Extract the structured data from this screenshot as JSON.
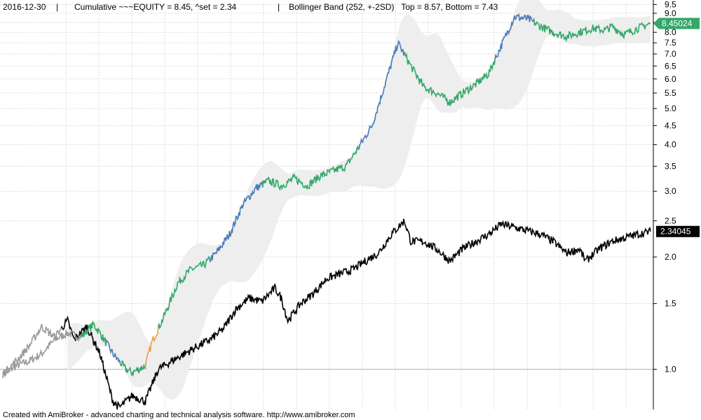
{
  "header": {
    "date": "2016-12-30",
    "cumulative": "Cumulative ~~~EQUITY = 8.45, ^set = 2.34",
    "bollinger": "Bollinger Band (252, +-2SD)   Top = 8.57, Bottom = 7.43"
  },
  "footer": "Created with AmiBroker - advanced charting and technical analysis software. http://www.amibroker.com",
  "colors": {
    "equity_up": "#4a7ab8",
    "equity_mid": "#33a86a",
    "equity_low": "#e8a040",
    "set_index": "#000000",
    "set_early": "#9a9a9a",
    "band_fill": "#eeeeee",
    "grid": "#c8c8c8",
    "equity_tag": "#33a86a",
    "set_tag": "#000000"
  },
  "chart_data": {
    "type": "line",
    "y_scale": "log",
    "ylim": [
      0.78,
      9.6
    ],
    "y_ticks": [
      "1.0",
      "1.5",
      "2.0",
      "2.5",
      "3.0",
      "3.5",
      "4.0",
      "4.5",
      "5.0",
      "5.5",
      "6.0",
      "6.5",
      "7.0",
      "7.5",
      "8.0",
      "8.5",
      "9.0",
      "9.5"
    ],
    "x_range": [
      0,
      100
    ],
    "grid": true,
    "series": [
      {
        "name": "EQUITY",
        "last_label": "8.45024",
        "points": [
          [
            0,
            0.97
          ],
          [
            2,
            1.02
          ],
          [
            4,
            1.05
          ],
          [
            6,
            1.1
          ],
          [
            8,
            1.2
          ],
          [
            10,
            1.25
          ],
          [
            12,
            1.22
          ],
          [
            14,
            1.32
          ],
          [
            15,
            1.25
          ],
          [
            17,
            1.1
          ],
          [
            19,
            1.0
          ],
          [
            20,
            0.98
          ],
          [
            22,
            1.02
          ],
          [
            23,
            1.18
          ],
          [
            25,
            1.4
          ],
          [
            27,
            1.7
          ],
          [
            29,
            1.85
          ],
          [
            31,
            1.9
          ],
          [
            33,
            2.05
          ],
          [
            35,
            2.3
          ],
          [
            37,
            2.75
          ],
          [
            39,
            3.05
          ],
          [
            41,
            3.2
          ],
          [
            43,
            3.1
          ],
          [
            45,
            3.25
          ],
          [
            47,
            3.1
          ],
          [
            49,
            3.3
          ],
          [
            51,
            3.4
          ],
          [
            53,
            3.5
          ],
          [
            55,
            3.95
          ],
          [
            57,
            4.5
          ],
          [
            59,
            5.8
          ],
          [
            61,
            7.5
          ],
          [
            63,
            6.5
          ],
          [
            65,
            5.7
          ],
          [
            67,
            5.5
          ],
          [
            69,
            5.2
          ],
          [
            71,
            5.5
          ],
          [
            73,
            5.8
          ],
          [
            75,
            6.2
          ],
          [
            77,
            7.4
          ],
          [
            79,
            8.8
          ],
          [
            81,
            8.7
          ],
          [
            83,
            8.3
          ],
          [
            85,
            8.0
          ],
          [
            87,
            7.8
          ],
          [
            89,
            8.0
          ],
          [
            91,
            8.2
          ],
          [
            93,
            8.1
          ],
          [
            94,
            8.3
          ],
          [
            96,
            7.9
          ],
          [
            98,
            8.2
          ],
          [
            100,
            8.45
          ]
        ]
      },
      {
        "name": "set",
        "last_label": "2.34045",
        "points": [
          [
            0,
            0.97
          ],
          [
            2,
            1.05
          ],
          [
            4,
            1.15
          ],
          [
            6,
            1.3
          ],
          [
            8,
            1.22
          ],
          [
            10,
            1.35
          ],
          [
            11,
            1.2
          ],
          [
            13,
            1.3
          ],
          [
            15,
            1.1
          ],
          [
            16,
            0.95
          ],
          [
            17,
            0.82
          ],
          [
            18,
            0.79
          ],
          [
            20,
            0.85
          ],
          [
            22,
            0.82
          ],
          [
            24,
            1.0
          ],
          [
            26,
            1.05
          ],
          [
            28,
            1.1
          ],
          [
            30,
            1.15
          ],
          [
            32,
            1.2
          ],
          [
            34,
            1.28
          ],
          [
            36,
            1.45
          ],
          [
            38,
            1.55
          ],
          [
            40,
            1.52
          ],
          [
            42,
            1.65
          ],
          [
            43,
            1.55
          ],
          [
            44,
            1.35
          ],
          [
            46,
            1.5
          ],
          [
            48,
            1.6
          ],
          [
            50,
            1.75
          ],
          [
            52,
            1.8
          ],
          [
            54,
            1.85
          ],
          [
            56,
            1.95
          ],
          [
            58,
            2.05
          ],
          [
            60,
            2.3
          ],
          [
            62,
            2.5
          ],
          [
            63,
            2.2
          ],
          [
            65,
            2.2
          ],
          [
            67,
            2.1
          ],
          [
            69,
            1.95
          ],
          [
            71,
            2.1
          ],
          [
            73,
            2.2
          ],
          [
            75,
            2.3
          ],
          [
            77,
            2.45
          ],
          [
            79,
            2.4
          ],
          [
            81,
            2.35
          ],
          [
            83,
            2.3
          ],
          [
            85,
            2.2
          ],
          [
            87,
            2.05
          ],
          [
            89,
            2.1
          ],
          [
            90,
            1.95
          ],
          [
            92,
            2.1
          ],
          [
            94,
            2.2
          ],
          [
            96,
            2.25
          ],
          [
            98,
            2.3
          ],
          [
            100,
            2.34
          ]
        ]
      }
    ]
  }
}
